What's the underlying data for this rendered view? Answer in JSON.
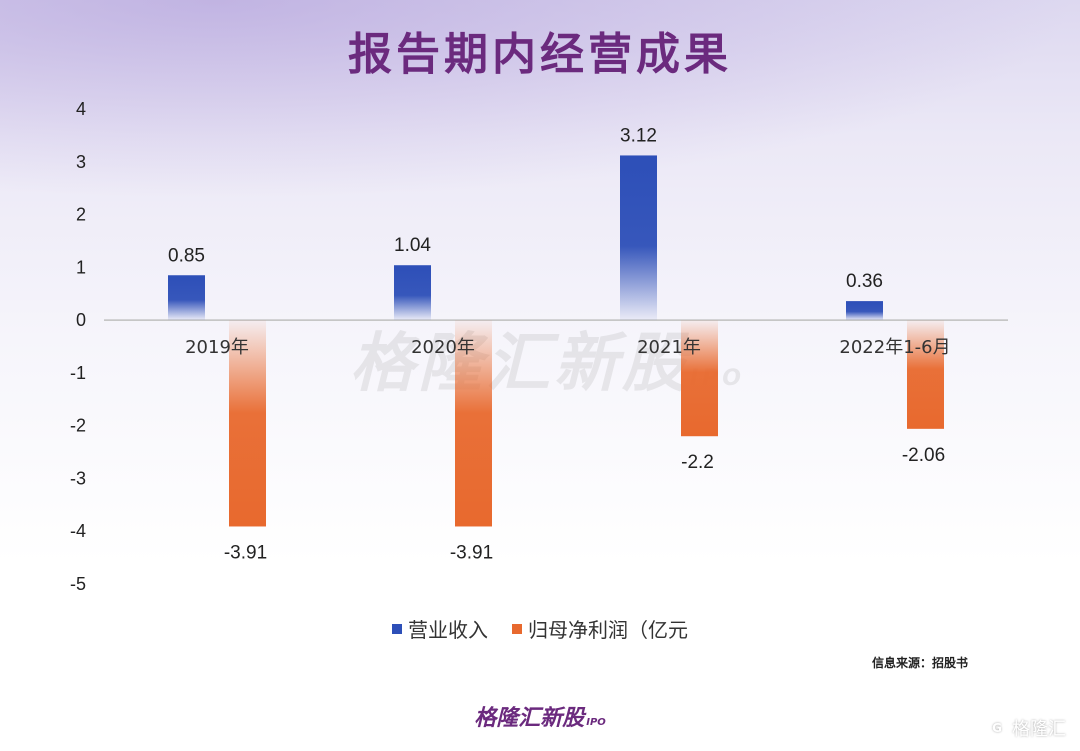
{
  "title": "报告期内经营成果",
  "chart_data": {
    "type": "bar",
    "categories": [
      "2019年",
      "2020年",
      "2021年",
      "2022年1-6月"
    ],
    "series": [
      {
        "name": "营业收入",
        "values": [
          0.85,
          1.04,
          3.12,
          0.36
        ],
        "color": "#2d4fb8"
      },
      {
        "name": "归母净利润（亿元",
        "values": [
          -3.91,
          -3.91,
          -2.2,
          -2.06
        ],
        "color": "#e8692e"
      }
    ],
    "data_labels": [
      [
        "0.85",
        "1.04",
        "3.12",
        "0.36"
      ],
      [
        "-3.91",
        "-3.91",
        "-2.2",
        "-2.06"
      ]
    ],
    "ylim": [
      -5,
      4
    ],
    "yticks": [
      4,
      3,
      2,
      1,
      0,
      -1,
      -2,
      -3,
      -4,
      -5
    ],
    "legend_position": "bottom"
  },
  "source": "信息来源：招股书",
  "watermark": "格隆汇新股",
  "watermark_suffix": "IPO",
  "logo": {
    "text": "格隆汇新股",
    "suffix": "IPO"
  },
  "corner_badge": {
    "icon": "G",
    "text": "格隆汇"
  }
}
